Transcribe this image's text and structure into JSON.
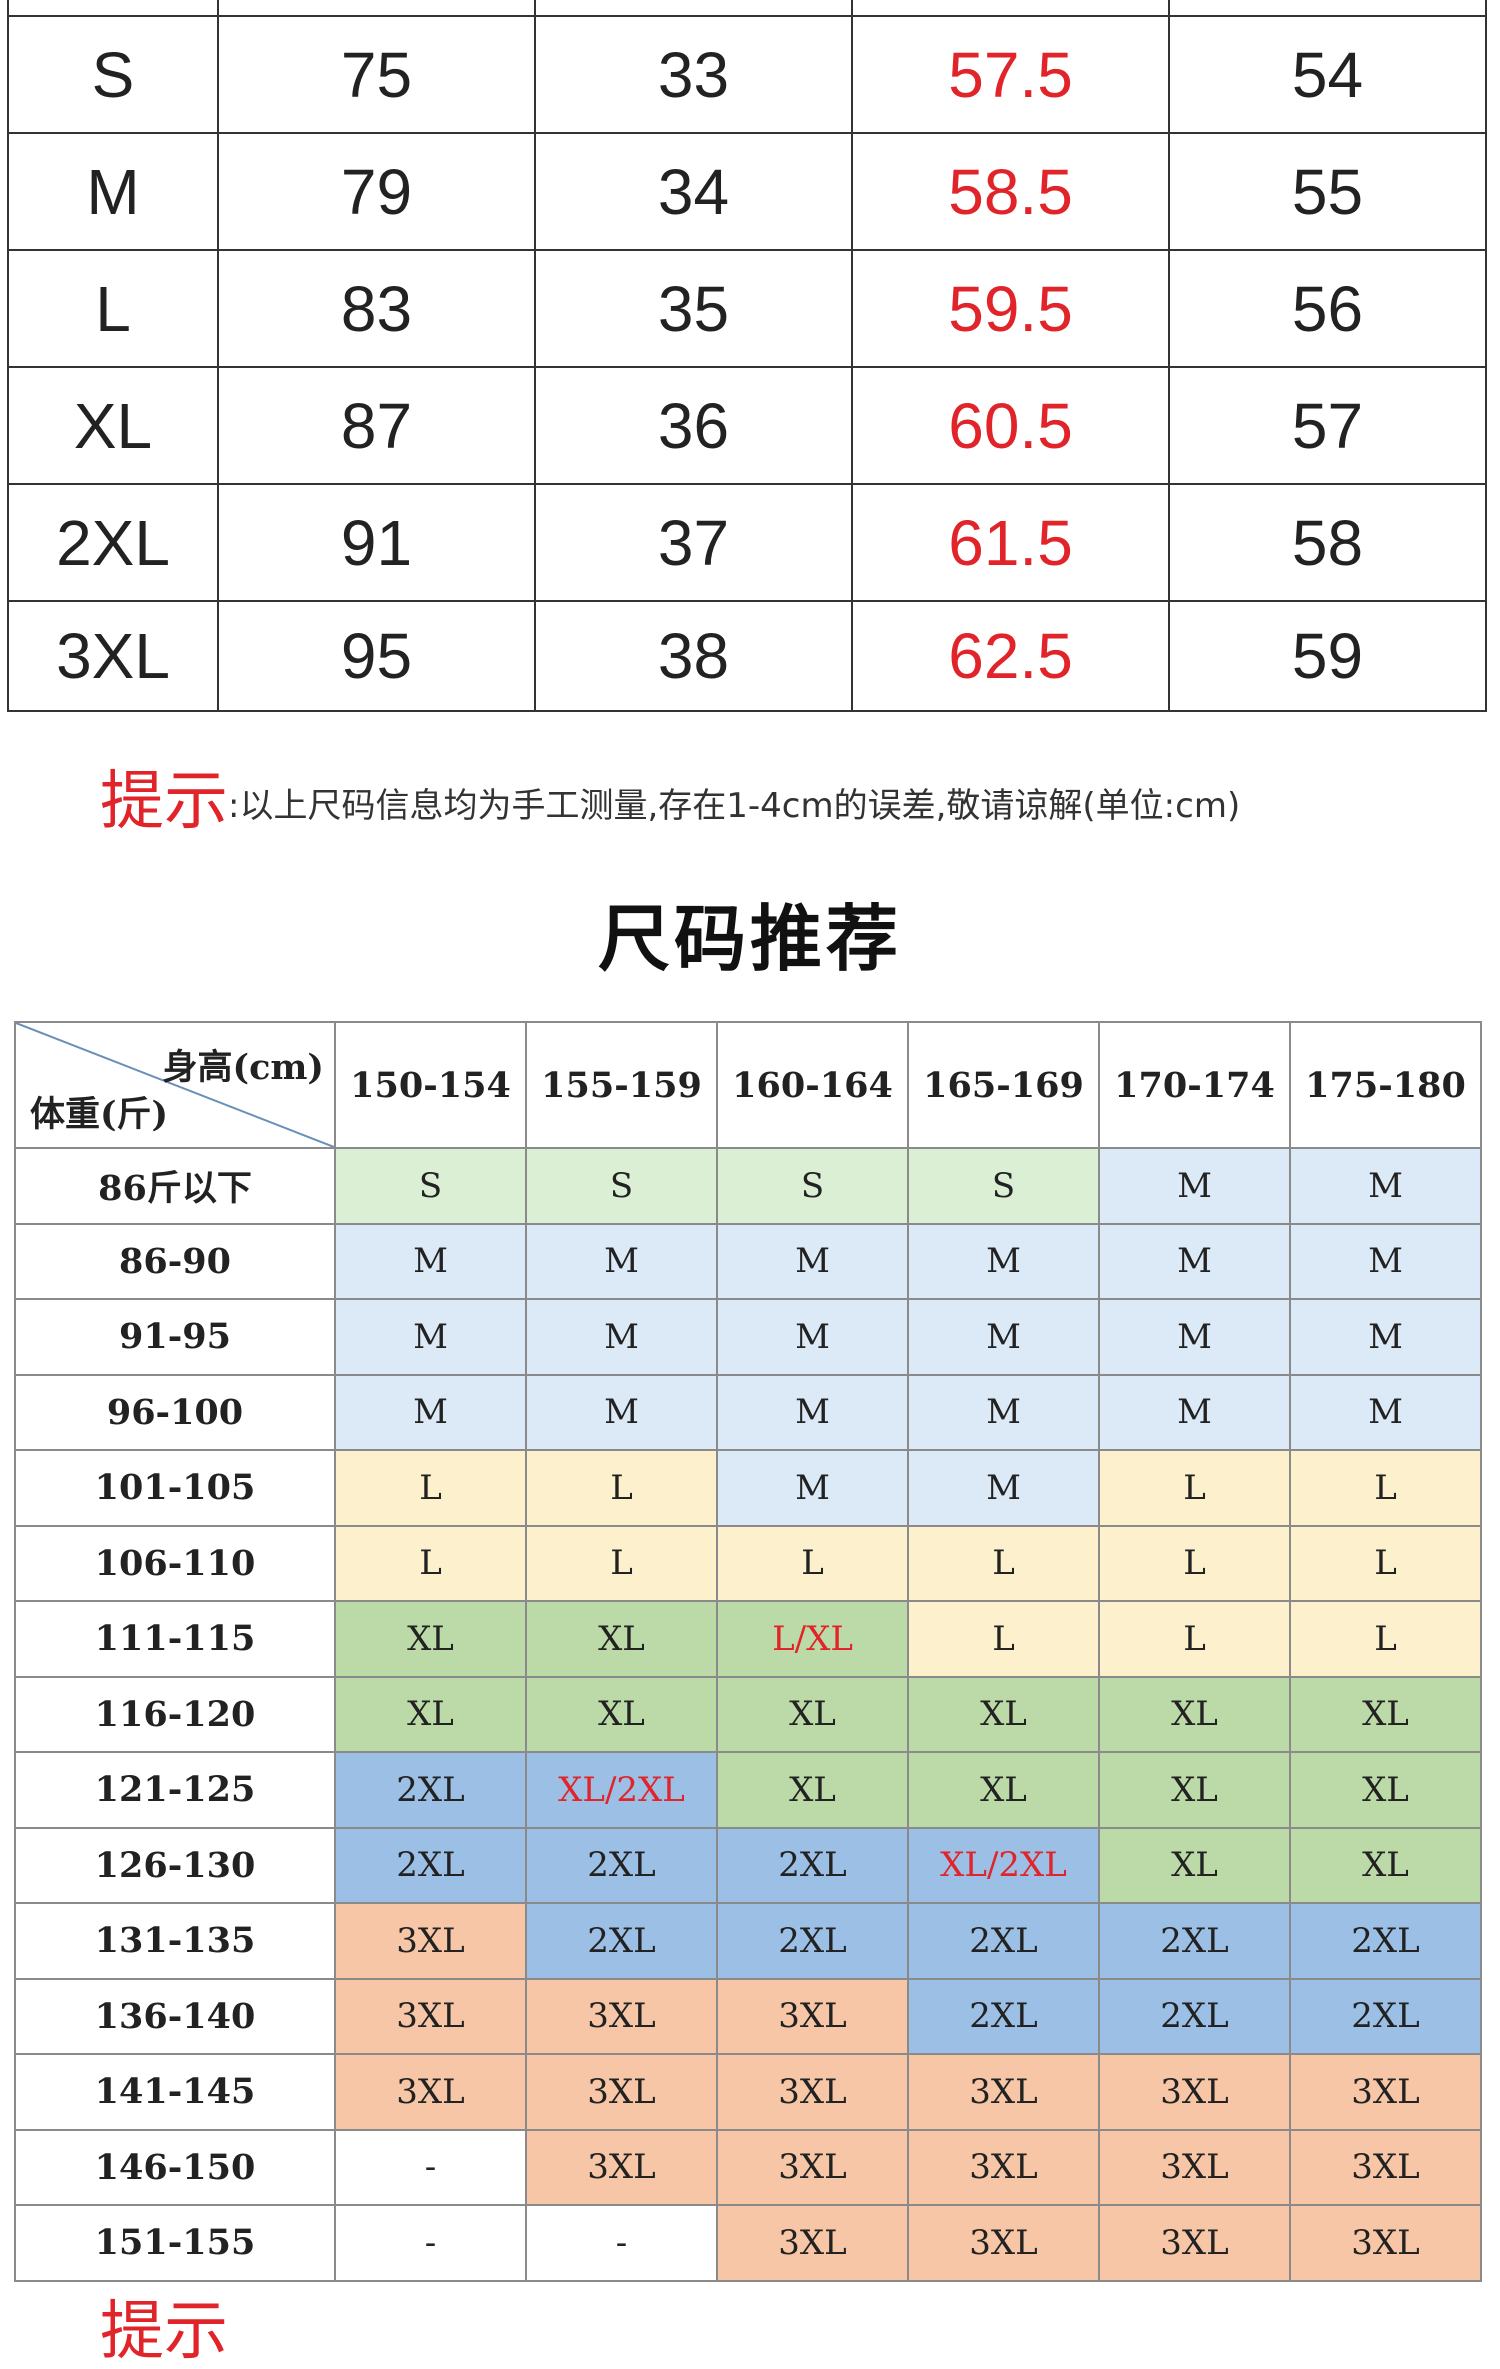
{
  "measurements": {
    "rows": [
      {
        "size": "S",
        "v1": "75",
        "v2": "33",
        "v3": "57.5",
        "v4": "54"
      },
      {
        "size": "M",
        "v1": "79",
        "v2": "34",
        "v3": "58.5",
        "v4": "55"
      },
      {
        "size": "L",
        "v1": "83",
        "v2": "35",
        "v3": "59.5",
        "v4": "56"
      },
      {
        "size": "XL",
        "v1": "87",
        "v2": "36",
        "v3": "60.5",
        "v4": "57"
      },
      {
        "size": "2XL",
        "v1": "91",
        "v2": "37",
        "v3": "61.5",
        "v4": "58"
      },
      {
        "size": "3XL",
        "v1": "95",
        "v2": "38",
        "v3": "62.5",
        "v4": "59"
      }
    ],
    "highlight_color": "#e0242a"
  },
  "tip": {
    "label": "提示",
    "text": ":以上尺码信息均为手工测量,存在1-4cm的误差,敬请谅解(单位:cm)"
  },
  "recommend": {
    "title": "尺码推荐",
    "height_label": "身高(cm)",
    "weight_label": "体重(斤)",
    "heights": [
      "150-154",
      "155-159",
      "160-164",
      "165-169",
      "170-174",
      "175-180"
    ],
    "rows": [
      {
        "weight": "86斤以下",
        "sizes": [
          "S",
          "S",
          "S",
          "S",
          "M",
          "M"
        ]
      },
      {
        "weight": "86-90",
        "sizes": [
          "M",
          "M",
          "M",
          "M",
          "M",
          "M"
        ]
      },
      {
        "weight": "91-95",
        "sizes": [
          "M",
          "M",
          "M",
          "M",
          "M",
          "M"
        ]
      },
      {
        "weight": "96-100",
        "sizes": [
          "M",
          "M",
          "M",
          "M",
          "M",
          "M"
        ]
      },
      {
        "weight": "101-105",
        "sizes": [
          "L",
          "L",
          "M",
          "M",
          "L",
          "L"
        ]
      },
      {
        "weight": "106-110",
        "sizes": [
          "L",
          "L",
          "L",
          "L",
          "L",
          "L"
        ]
      },
      {
        "weight": "111-115",
        "sizes": [
          "XL",
          "XL",
          "L/XL",
          "L",
          "L",
          "L"
        ]
      },
      {
        "weight": "116-120",
        "sizes": [
          "XL",
          "XL",
          "XL",
          "XL",
          "XL",
          "XL"
        ]
      },
      {
        "weight": "121-125",
        "sizes": [
          "2XL",
          "XL/2XL",
          "XL",
          "XL",
          "XL",
          "XL"
        ]
      },
      {
        "weight": "126-130",
        "sizes": [
          "2XL",
          "2XL",
          "2XL",
          "XL/2XL",
          "XL",
          "XL"
        ]
      },
      {
        "weight": "131-135",
        "sizes": [
          "3XL",
          "2XL",
          "2XL",
          "2XL",
          "2XL",
          "2XL"
        ]
      },
      {
        "weight": "136-140",
        "sizes": [
          "3XL",
          "3XL",
          "3XL",
          "2XL",
          "2XL",
          "2XL"
        ]
      },
      {
        "weight": "141-145",
        "sizes": [
          "3XL",
          "3XL",
          "3XL",
          "3XL",
          "3XL",
          "3XL"
        ]
      },
      {
        "weight": "146-150",
        "sizes": [
          "-",
          "3XL",
          "3XL",
          "3XL",
          "3XL",
          "3XL"
        ]
      },
      {
        "weight": "151-155",
        "sizes": [
          "-",
          "-",
          "3XL",
          "3XL",
          "3XL",
          "3XL"
        ]
      }
    ],
    "cell_colors": {
      "S": "#dbefd5",
      "M": "#dce9f6",
      "L": "#fdf0cc",
      "XL": "#bcdaa8",
      "2XL": "#9cbfe5",
      "3XL": "#f6c6a6",
      "-": "#ffffff"
    },
    "red_cells": [
      "L/XL",
      "XL/2XL"
    ]
  },
  "bottom_tip": "提示"
}
